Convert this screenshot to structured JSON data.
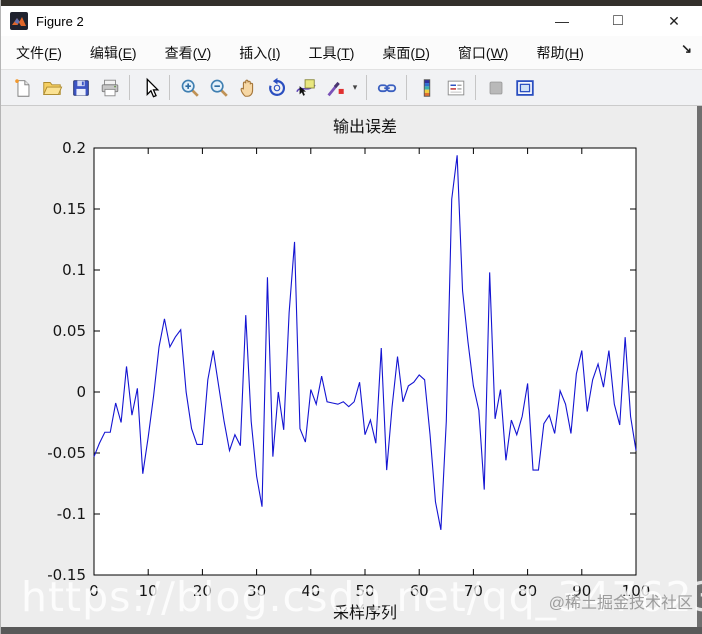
{
  "window": {
    "title": "Figure 2",
    "controls": {
      "minimize": "—",
      "maximize": "□",
      "close": "✕"
    }
  },
  "menu": {
    "items": [
      "文件(F)",
      "编辑(E)",
      "查看(V)",
      "插入(I)",
      "工具(T)",
      "桌面(D)",
      "窗口(W)",
      "帮助(H)"
    ],
    "overflow_arrow": "↘"
  },
  "toolbar": {
    "buttons": [
      "new-figure",
      "open-file",
      "save-figure",
      "print-figure",
      "edit-cursor",
      "zoom-in",
      "zoom-out",
      "pan",
      "rotate-3d",
      "data-cursor",
      "brush",
      "brush-menu-caret",
      "link-plot",
      "insert-colorbar",
      "insert-legend",
      "disabled-button",
      "dock-figure"
    ],
    "brush_caret": "▾"
  },
  "chart_data": {
    "type": "line",
    "title": "输出误差",
    "xlabel": "采样序列",
    "ylabel": "",
    "x_range": [
      0,
      100
    ],
    "ylim": [
      -0.15,
      0.2
    ],
    "x_start": 0,
    "x_step": 1,
    "xticks": [
      "0",
      "10",
      "20",
      "30",
      "40",
      "50",
      "60",
      "70",
      "80",
      "90",
      "100"
    ],
    "yticks": [
      "-0.15",
      "-0.1",
      "-0.05",
      "0",
      "0.05",
      "0.1",
      "0.15",
      "0.2"
    ],
    "grid": false,
    "line_color": "#1414d2",
    "values": [
      -0.053,
      -0.042,
      -0.033,
      -0.033,
      -0.009,
      -0.025,
      0.021,
      -0.019,
      0.003,
      -0.067,
      -0.037,
      -0.003,
      0.037,
      0.06,
      0.037,
      0.045,
      0.051,
      0.0,
      -0.03,
      -0.043,
      -0.043,
      0.01,
      0.034,
      0.005,
      -0.024,
      -0.048,
      -0.035,
      -0.044,
      0.063,
      -0.024,
      -0.069,
      -0.094,
      0.094,
      -0.053,
      0.0,
      -0.031,
      0.065,
      0.123,
      -0.03,
      -0.041,
      0.002,
      -0.01,
      0.013,
      -0.008,
      -0.009,
      -0.01,
      -0.008,
      -0.012,
      -0.008,
      0.008,
      -0.035,
      -0.023,
      -0.042,
      0.036,
      -0.064,
      -0.012,
      0.029,
      -0.008,
      0.005,
      0.008,
      0.014,
      0.01,
      -0.035,
      -0.09,
      -0.113,
      -0.024,
      0.158,
      0.194,
      0.083,
      0.041,
      0.005,
      -0.015,
      -0.08,
      0.098,
      -0.022,
      0.002,
      -0.056,
      -0.023,
      -0.035,
      -0.02,
      0.007,
      -0.064,
      -0.064,
      -0.026,
      -0.019,
      -0.034,
      0.001,
      -0.01,
      -0.034,
      0.015,
      0.034,
      -0.016,
      0.01,
      0.023,
      0.004,
      0.034,
      -0.01,
      -0.027,
      0.045,
      -0.02,
      -0.048
    ]
  },
  "watermark": {
    "url_text": "https://blog.csdn.net/qq_34762304",
    "community_text": "@稀土掘金技术社区"
  }
}
